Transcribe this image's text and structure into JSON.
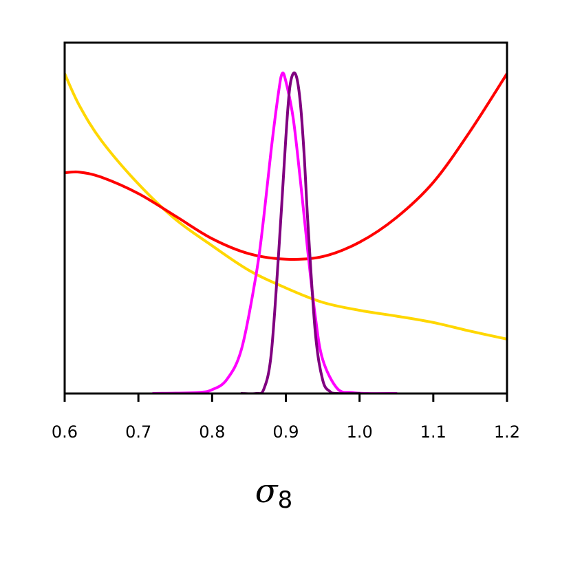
{
  "chart_data": {
    "type": "line",
    "title": "",
    "xlabel": "σ",
    "xlabel_subscript": "8",
    "ylabel": "",
    "xlim": [
      0.6,
      1.2
    ],
    "ylim": [
      0,
      1.0
    ],
    "xticks": [
      0.6,
      0.7,
      0.8,
      0.9,
      1.0,
      1.1,
      1.2
    ],
    "xtick_labels": [
      "0.6",
      "0.7",
      "0.8",
      "0.9",
      "1.0",
      "1.1",
      "1.2"
    ],
    "y_ticks_shown": false,
    "grid": false,
    "legend": "none",
    "series": [
      {
        "color": "#ffd700",
        "x": [
          0.6,
          0.62,
          0.65,
          0.7,
          0.75,
          0.8,
          0.85,
          0.9,
          0.95,
          1.0,
          1.05,
          1.1,
          1.15,
          1.2
        ],
        "y": [
          1.0,
          0.9,
          0.79,
          0.655,
          0.545,
          0.462,
          0.385,
          0.33,
          0.285,
          0.26,
          0.242,
          0.222,
          0.195,
          0.17
        ]
      },
      {
        "color": "#ff0000",
        "x": [
          0.6,
          0.62,
          0.65,
          0.7,
          0.75,
          0.8,
          0.85,
          0.9,
          0.95,
          1.0,
          1.05,
          1.1,
          1.15,
          1.2
        ],
        "y": [
          0.69,
          0.692,
          0.676,
          0.625,
          0.555,
          0.484,
          0.437,
          0.42,
          0.428,
          0.473,
          0.55,
          0.66,
          0.82,
          1.0
        ]
      },
      {
        "color": "#ff00ff",
        "x": [
          0.72,
          0.78,
          0.8,
          0.82,
          0.84,
          0.86,
          0.87,
          0.88,
          0.89,
          0.895,
          0.9,
          0.91,
          0.92,
          0.93,
          0.94,
          0.95,
          0.97,
          0.99,
          1.01,
          1.05
        ],
        "y": [
          0.0,
          0.003,
          0.012,
          0.044,
          0.14,
          0.376,
          0.55,
          0.76,
          0.94,
          1.0,
          0.976,
          0.86,
          0.66,
          0.44,
          0.24,
          0.106,
          0.015,
          0.003,
          0.0,
          0.0
        ]
      },
      {
        "color": "#800080",
        "x": [
          0.84,
          0.86,
          0.87,
          0.88,
          0.89,
          0.9,
          0.905,
          0.91,
          0.915,
          0.92,
          0.925,
          0.93,
          0.94,
          0.95,
          0.96,
          0.97,
          1.0
        ],
        "y": [
          0.0,
          0.0,
          0.013,
          0.12,
          0.43,
          0.8,
          0.95,
          1.0,
          0.985,
          0.9,
          0.74,
          0.53,
          0.19,
          0.042,
          0.006,
          0.0,
          0.0
        ]
      }
    ]
  }
}
